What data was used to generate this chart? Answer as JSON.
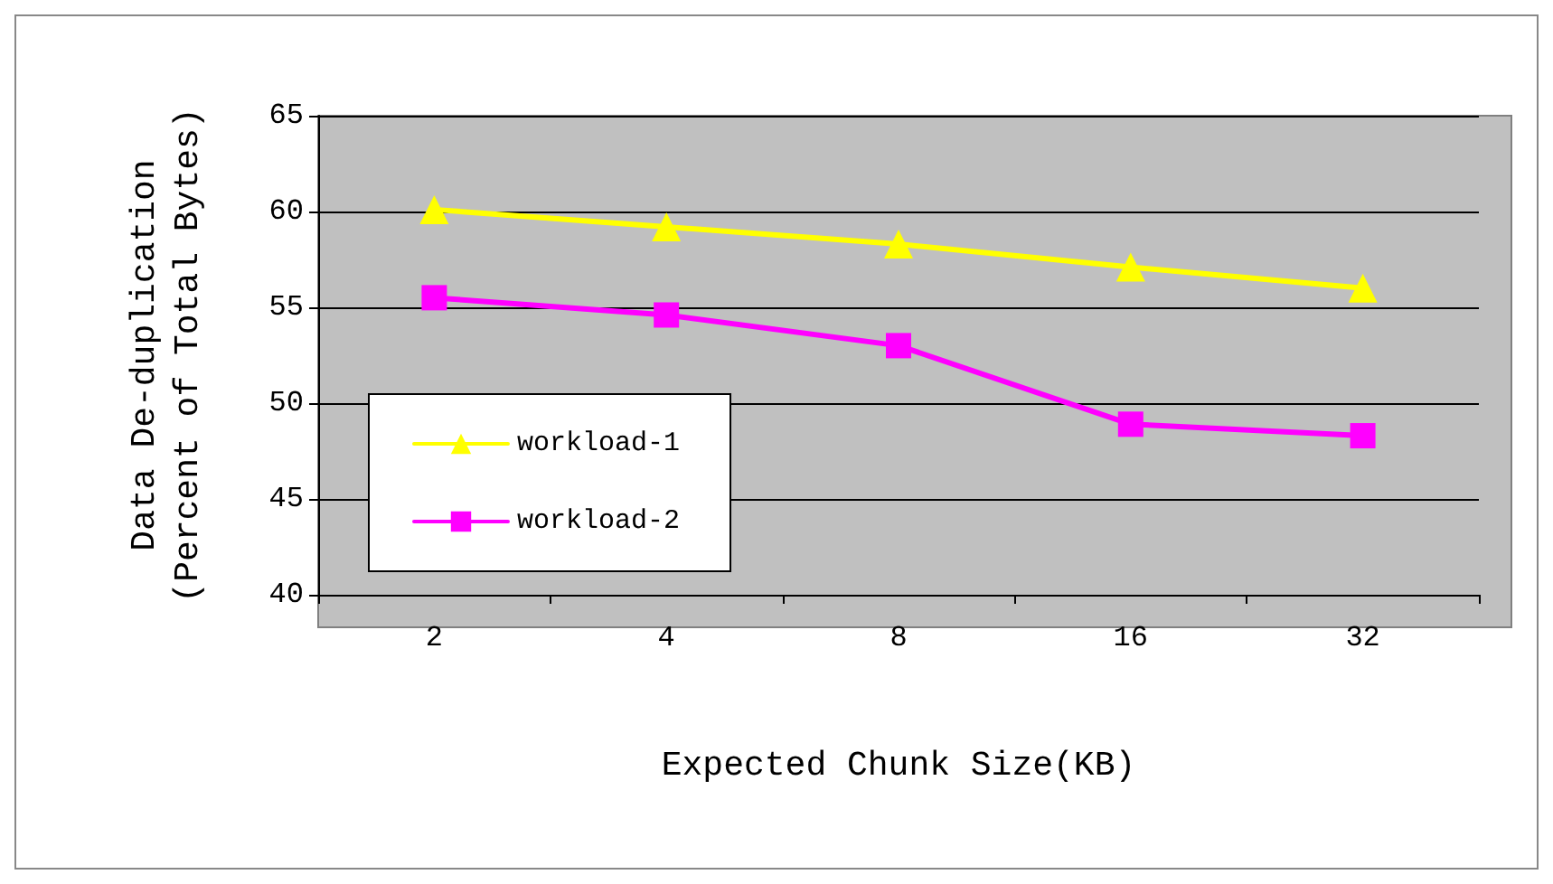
{
  "chart_data": {
    "type": "line",
    "xlabel": "Expected Chunk Size(KB)",
    "ylabel": "Data De-duplication\n(Percent of Total Bytes)",
    "categories": [
      "2",
      "4",
      "8",
      "16",
      "32"
    ],
    "ylim": [
      40,
      65
    ],
    "yticks": [
      40,
      45,
      50,
      55,
      60,
      65
    ],
    "grid": "y",
    "legend": "bottom left",
    "series": [
      {
        "name": "workload-1",
        "color": "#ffff00",
        "marker": "triangle",
        "values": [
          60.1,
          59.2,
          58.3,
          57.1,
          56.0
        ]
      },
      {
        "name": "workload-2",
        "color": "#ff00ff",
        "marker": "square",
        "values": [
          55.5,
          54.6,
          53.0,
          48.9,
          48.3
        ]
      }
    ]
  }
}
